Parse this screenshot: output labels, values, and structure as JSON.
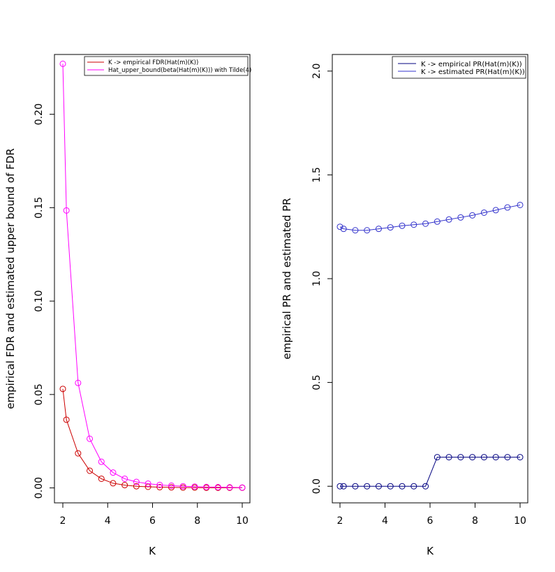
{
  "chart_data": [
    {
      "type": "line",
      "title": "",
      "xlabel": "K",
      "ylabel": "empirical FDR and estimated upper bound of FDR",
      "xlim": [
        2,
        10
      ],
      "ylim": [
        -0.008,
        0.232
      ],
      "xticks": [
        "2",
        "4",
        "6",
        "8",
        "10"
      ],
      "xtick_values": [
        2,
        4,
        6,
        8,
        10
      ],
      "yticks": [
        "0.00",
        "0.05",
        "0.10",
        "0.15",
        "0.20"
      ],
      "ytick_values": [
        0,
        0.05,
        0.1,
        0.15,
        0.2
      ],
      "x": [
        2.0,
        2.16,
        2.68,
        3.2,
        3.72,
        4.24,
        4.76,
        5.28,
        5.8,
        6.32,
        6.84,
        7.36,
        7.88,
        8.4,
        8.92,
        9.44,
        10.0
      ],
      "series": [
        {
          "name": "K -> empirical FDR(Hat(m)(K))",
          "color": "#cc0000",
          "values": [
            0.053,
            0.0365,
            0.0185,
            0.0092,
            0.0049,
            0.0025,
            0.0015,
            0.0009,
            0.0006,
            0.0004,
            0.0003,
            0.0002,
            0.0002,
            0.0001,
            0.0001,
            0.0001,
            0.0001
          ]
        },
        {
          "name": "Hat_upper_bound(beta(Hat(m)(K))) with Tilde(4)",
          "color": "#ff00ff",
          "values": [
            0.227,
            0.1485,
            0.0562,
            0.0263,
            0.014,
            0.0082,
            0.0049,
            0.0032,
            0.0023,
            0.0016,
            0.0012,
            0.0009,
            0.0007,
            0.0005,
            0.0004,
            0.0003,
            0.0002
          ]
        }
      ],
      "legend_position": "top-right",
      "grid": false
    },
    {
      "type": "line",
      "title": "",
      "xlabel": "K",
      "ylabel": "empirical PR and estimated PR",
      "xlim": [
        2,
        10
      ],
      "ylim": [
        -0.08,
        2.08
      ],
      "xticks": [
        "2",
        "4",
        "6",
        "8",
        "10"
      ],
      "xtick_values": [
        2,
        4,
        6,
        8,
        10
      ],
      "yticks": [
        "0.0",
        "0.5",
        "1.0",
        "1.5",
        "2.0"
      ],
      "ytick_values": [
        0,
        0.5,
        1.0,
        1.5,
        2.0
      ],
      "x": [
        2.0,
        2.16,
        2.68,
        3.2,
        3.72,
        4.24,
        4.76,
        5.28,
        5.8,
        6.32,
        6.84,
        7.36,
        7.88,
        8.4,
        8.92,
        9.44,
        10.0
      ],
      "series": [
        {
          "name": "K -> empirical PR(Hat(m)(K))",
          "color": "#000080",
          "values": [
            0,
            0,
            0,
            0,
            0,
            0,
            0,
            0,
            0,
            0.14,
            0.14,
            0.14,
            0.14,
            0.14,
            0.14,
            0.14,
            0.14
          ]
        },
        {
          "name": "K -> estimated PR(Hat(m)(K))",
          "color": "#3333cc",
          "values": [
            1.25,
            1.24,
            1.233,
            1.233,
            1.24,
            1.247,
            1.255,
            1.26,
            1.265,
            1.275,
            1.285,
            1.295,
            1.305,
            1.318,
            1.33,
            1.343,
            1.355
          ]
        }
      ],
      "legend_position": "top-right",
      "grid": false
    }
  ]
}
